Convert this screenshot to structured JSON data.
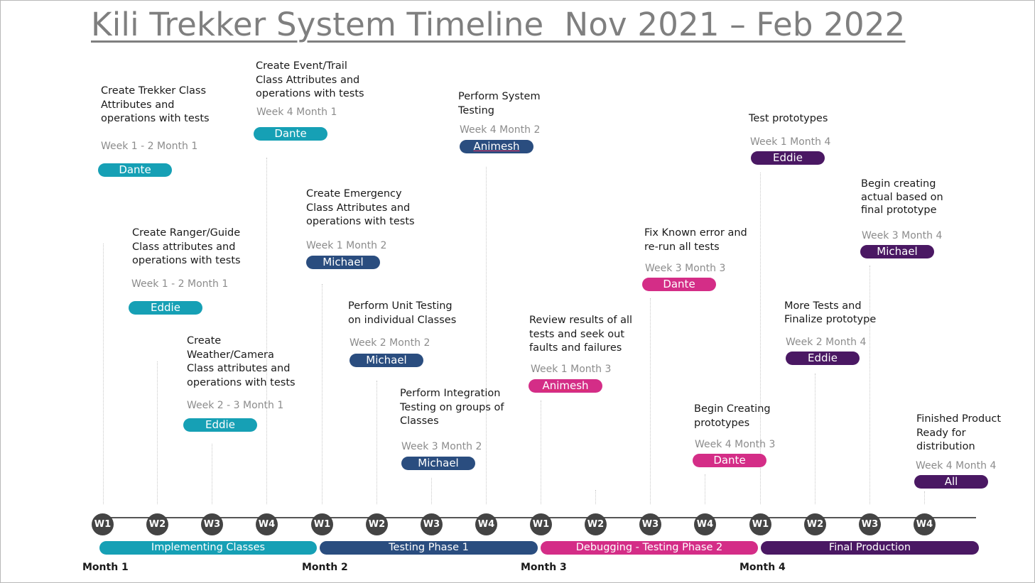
{
  "title": "Kili Trekker System Timeline  Nov 2021 – Feb 2022",
  "tasks": [
    {
      "desc": "Create Trekker Class Attributes and operations with tests",
      "week": "Week 1 - 2 Month 1",
      "owner": "Dante",
      "color": "#16a0b5"
    },
    {
      "desc": "Create Ranger/Guide Class attributes and operations with tests",
      "week": "Week 1 - 2 Month 1",
      "owner": "Eddie",
      "color": "#16a0b5"
    },
    {
      "desc": "Create Weather/Camera Class attributes and operations with tests",
      "week": "Week 2 - 3 Month 1",
      "owner": "Eddie",
      "color": "#16a0b5"
    },
    {
      "desc": "Create Event/Trail Class Attributes and operations with tests",
      "week": "Week 4 Month 1",
      "owner": "Dante",
      "color": "#16a0b5"
    },
    {
      "desc": "Create Emergency Class Attributes and operations with tests",
      "week": "Week 1 Month 2",
      "owner": "Michael",
      "color": "#2a4d7f"
    },
    {
      "desc": "Perform Unit Testing on individual Classes",
      "week": "Week 2 Month 2",
      "owner": "Michael",
      "color": "#2a4d7f"
    },
    {
      "desc": "Perform Integration Testing on groups of Classes",
      "week": "Week 3 Month 2",
      "owner": "Michael",
      "color": "#2a4d7f"
    },
    {
      "desc": "Perform System Testing",
      "week": "Week 4 Month 2",
      "owner": "Animesh",
      "color": "#2a4d7f"
    },
    {
      "desc": "Review results of all tests and seek out faults and failures",
      "week": "Week 1 Month 3",
      "owner": "Animesh",
      "color": "#d42d87"
    },
    {
      "desc": "Fix Known error and re-run all tests",
      "week": "Week 3 Month 3",
      "owner": "Dante",
      "color": "#d42d87"
    },
    {
      "desc": "Begin Creating prototypes",
      "week": "Week 4 Month 3",
      "owner": "Dante",
      "color": "#d42d87"
    },
    {
      "desc": "Test prototypes",
      "week": "Week 1 Month 4",
      "owner": "Eddie",
      "color": "#4a1863"
    },
    {
      "desc": "More Tests and Finalize prototype",
      "week": "Week 2 Month 4",
      "owner": "Eddie",
      "color": "#4a1863"
    },
    {
      "desc": "Begin creating actual based on final prototype",
      "week": "Week 3 Month 4",
      "owner": "Michael",
      "color": "#4a1863"
    },
    {
      "desc": "Finished Product Ready for distribution",
      "week": "Week 4 Month 4",
      "owner": "All",
      "color": "#4a1863"
    }
  ],
  "week_markers": [
    "W1",
    "W2",
    "W3",
    "W4",
    "W1",
    "W2",
    "W3",
    "W4",
    "W1",
    "W2",
    "W3",
    "W4",
    "W1",
    "W2",
    "W3",
    "W4"
  ],
  "phases": [
    {
      "label": "Implementing Classes",
      "color": "#16a0b5"
    },
    {
      "label": "Testing Phase 1",
      "color": "#2a4d7f"
    },
    {
      "label": "Debugging - Testing Phase 2",
      "color": "#d42d87"
    },
    {
      "label": "Final Production",
      "color": "#4a1863"
    }
  ],
  "months": [
    "Month 1",
    "Month 2",
    "Month 3",
    "Month 4"
  ]
}
